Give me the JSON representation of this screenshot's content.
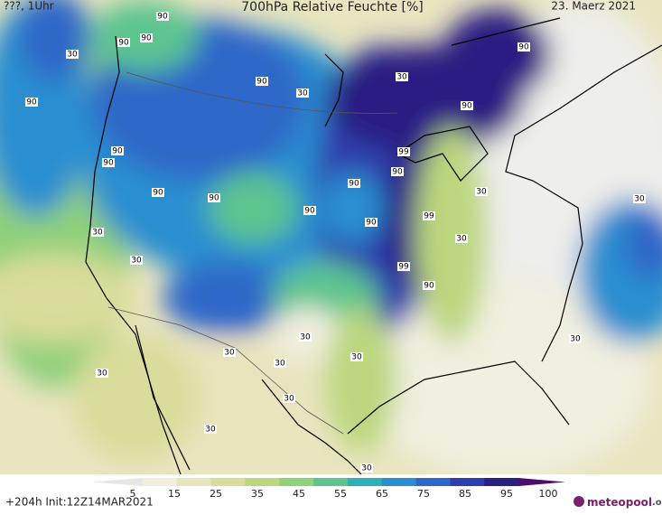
{
  "header": {
    "left": "???, 1Uhr",
    "title": "700hPa Relative Feuchte [%]",
    "date": "23. Maerz 2021"
  },
  "colorbar": {
    "ticks": [
      5,
      15,
      25,
      35,
      45,
      55,
      65,
      75,
      85,
      95,
      100
    ],
    "colors": [
      "#e6e6e6",
      "#f2efdc",
      "#e9e4bc",
      "#d9dc9a",
      "#bcd77e",
      "#8fd07a",
      "#5cc48f",
      "#2fb0b8",
      "#2a8fd0",
      "#2f67c8",
      "#2d3fae",
      "#2a1f82",
      "#4a0f6b"
    ]
  },
  "footer": {
    "run": "+204h Init:12Z14MAR2021",
    "logo": "meteopool",
    "logo_suffix": ".org"
  },
  "contour_labels": [
    90,
    90,
    90,
    30,
    90,
    30,
    30,
    90,
    90,
    90,
    90,
    99,
    90,
    90,
    30,
    90,
    90,
    90,
    30,
    90,
    99,
    30,
    30,
    30,
    99,
    90,
    30,
    30,
    30,
    30,
    30,
    30,
    30,
    30,
    30,
    90
  ]
}
